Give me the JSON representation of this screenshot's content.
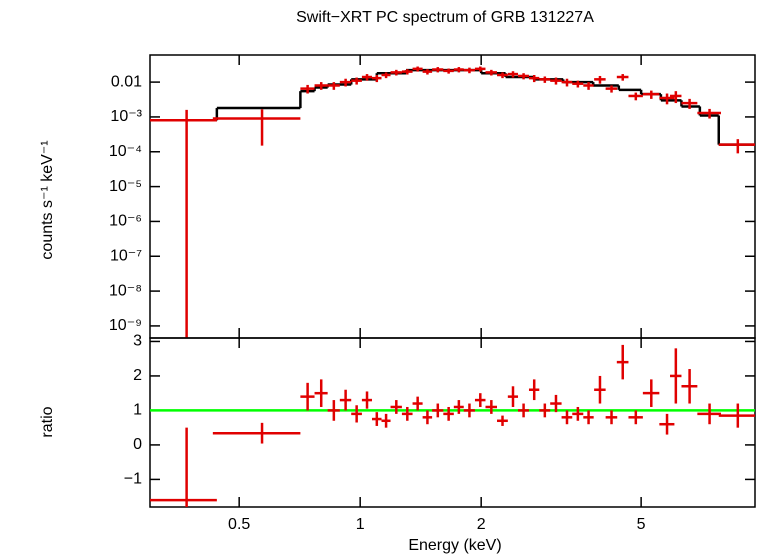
{
  "chart_data": [
    {
      "type": "errorbar",
      "title": "Swift−XRT PC spectrum of GRB 131227A",
      "ylabel": "counts s⁻¹ keV⁻¹",
      "xlog": true,
      "ylog": true,
      "xlim": [
        0.3,
        9.6
      ],
      "ylim": [
        4.5e-10,
        0.06
      ],
      "xticks": [
        0.5,
        1,
        2,
        5
      ],
      "yticks": [
        {
          "value": 0.01,
          "label": "0.01"
        },
        {
          "value": 0.001,
          "label": "10⁻³"
        },
        {
          "value": 0.0001,
          "label": "10⁻⁴"
        },
        {
          "value": 1e-05,
          "label": "10⁻⁵"
        },
        {
          "value": 1e-06,
          "label": "10⁻⁶"
        },
        {
          "value": 1e-07,
          "label": "10⁻⁷"
        },
        {
          "value": 1e-08,
          "label": "10⁻⁸"
        },
        {
          "value": 1e-09,
          "label": "10⁻⁹"
        }
      ],
      "series": [
        {
          "color": "#e00000",
          "x": [
            0.37,
            0.57,
            0.74,
            0.8,
            0.86,
            0.92,
            0.98,
            1.04,
            1.1,
            1.16,
            1.23,
            1.31,
            1.39,
            1.47,
            1.56,
            1.66,
            1.76,
            1.87,
            1.99,
            2.12,
            2.26,
            2.4,
            2.55,
            2.71,
            2.88,
            3.07,
            3.27,
            3.48,
            3.7,
            3.95,
            4.22,
            4.5,
            4.85,
            5.3,
            5.8,
            6.1,
            6.6,
            7.4,
            8.7
          ],
          "x_err": [
            0.07,
            0.14,
            0.03,
            0.03,
            0.03,
            0.03,
            0.03,
            0.03,
            0.03,
            0.03,
            0.04,
            0.04,
            0.04,
            0.04,
            0.05,
            0.05,
            0.05,
            0.06,
            0.06,
            0.07,
            0.07,
            0.07,
            0.08,
            0.08,
            0.09,
            0.1,
            0.1,
            0.11,
            0.11,
            0.13,
            0.14,
            0.15,
            0.2,
            0.25,
            0.25,
            0.2,
            0.3,
            0.5,
            0.9
          ],
          "values": [
            0.0008,
            0.0009,
            0.0065,
            0.008,
            0.008,
            0.01,
            0.011,
            0.014,
            0.013,
            0.016,
            0.019,
            0.02,
            0.024,
            0.02,
            0.023,
            0.021,
            0.023,
            0.022,
            0.024,
            0.019,
            0.016,
            0.017,
            0.015,
            0.013,
            0.012,
            0.011,
            0.01,
            0.009,
            0.008,
            0.012,
            0.0065,
            0.014,
            0.004,
            0.0045,
            0.0035,
            0.004,
            0.0025,
            0.0013,
            0.00016
          ],
          "errors": [
            0.0008,
            0.00075,
            0.0018,
            0.002,
            0.002,
            0.0025,
            0.0025,
            0.003,
            0.003,
            0.003,
            0.0035,
            0.0035,
            0.004,
            0.0035,
            0.004,
            0.0035,
            0.004,
            0.004,
            0.004,
            0.0035,
            0.003,
            0.0035,
            0.003,
            0.003,
            0.0025,
            0.0025,
            0.0025,
            0.002,
            0.002,
            0.003,
            0.0015,
            0.003,
            0.001,
            0.0012,
            0.0012,
            0.0015,
            0.0008,
            0.0004,
            7e-05
          ]
        }
      ],
      "model": {
        "color": "#000000",
        "bins": [
          0.3,
          0.44,
          0.71,
          0.77,
          0.83,
          0.95,
          1.1,
          1.3,
          1.6,
          2.0,
          2.3,
          2.7,
          3.2,
          3.8,
          4.4,
          5.0,
          5.6,
          6.3,
          7.0,
          7.8,
          9.6
        ],
        "values": [
          0.0008,
          0.0018,
          0.0055,
          0.007,
          0.0085,
          0.012,
          0.018,
          0.022,
          0.022,
          0.018,
          0.014,
          0.012,
          0.01,
          0.008,
          0.006,
          0.0045,
          0.003,
          0.002,
          0.0011,
          0.00016
        ]
      }
    },
    {
      "type": "errorbar",
      "xlabel": "Energy (keV)",
      "ylabel": "ratio",
      "xlog": true,
      "ylog": false,
      "xlim": [
        0.3,
        9.6
      ],
      "ylim": [
        -1.8,
        3.1
      ],
      "xticks": [
        0.5,
        1,
        2,
        5
      ],
      "yticks": [
        3,
        2,
        1,
        0,
        {
          "value": -1,
          "label": "−1"
        }
      ],
      "series": [
        {
          "color": "#e00000",
          "x": [
            0.37,
            0.57,
            0.74,
            0.8,
            0.86,
            0.92,
            0.98,
            1.04,
            1.1,
            1.16,
            1.23,
            1.31,
            1.39,
            1.47,
            1.56,
            1.66,
            1.76,
            1.87,
            1.99,
            2.12,
            2.26,
            2.4,
            2.55,
            2.71,
            2.88,
            3.07,
            3.27,
            3.48,
            3.7,
            3.95,
            4.22,
            4.5,
            4.85,
            5.3,
            5.8,
            6.1,
            6.6,
            7.4,
            8.7
          ],
          "x_err": [
            0.07,
            0.14,
            0.03,
            0.03,
            0.03,
            0.03,
            0.03,
            0.03,
            0.03,
            0.03,
            0.04,
            0.04,
            0.04,
            0.04,
            0.05,
            0.05,
            0.05,
            0.06,
            0.06,
            0.07,
            0.07,
            0.07,
            0.08,
            0.08,
            0.09,
            0.1,
            0.1,
            0.11,
            0.11,
            0.13,
            0.14,
            0.15,
            0.2,
            0.25,
            0.25,
            0.2,
            0.3,
            0.5,
            0.9
          ],
          "values": [
            -1.6,
            0.34,
            1.4,
            1.5,
            1.0,
            1.3,
            0.9,
            1.3,
            0.75,
            0.7,
            1.1,
            0.9,
            1.2,
            0.8,
            1.0,
            0.9,
            1.1,
            1.0,
            1.3,
            1.1,
            0.7,
            1.4,
            1.0,
            1.6,
            1.0,
            1.2,
            0.8,
            0.9,
            0.8,
            1.6,
            0.8,
            2.4,
            0.8,
            1.5,
            0.6,
            2.0,
            1.7,
            0.9,
            0.85
          ],
          "errors": [
            2.1,
            0.3,
            0.4,
            0.4,
            0.3,
            0.3,
            0.25,
            0.25,
            0.2,
            0.2,
            0.2,
            0.2,
            0.2,
            0.2,
            0.2,
            0.2,
            0.2,
            0.2,
            0.2,
            0.2,
            0.15,
            0.3,
            0.2,
            0.3,
            0.2,
            0.25,
            0.2,
            0.2,
            0.2,
            0.4,
            0.2,
            0.5,
            0.2,
            0.4,
            0.3,
            0.8,
            0.5,
            0.3,
            0.35
          ]
        }
      ],
      "reference_line": {
        "value": 1,
        "color": "#00ff00"
      }
    }
  ]
}
